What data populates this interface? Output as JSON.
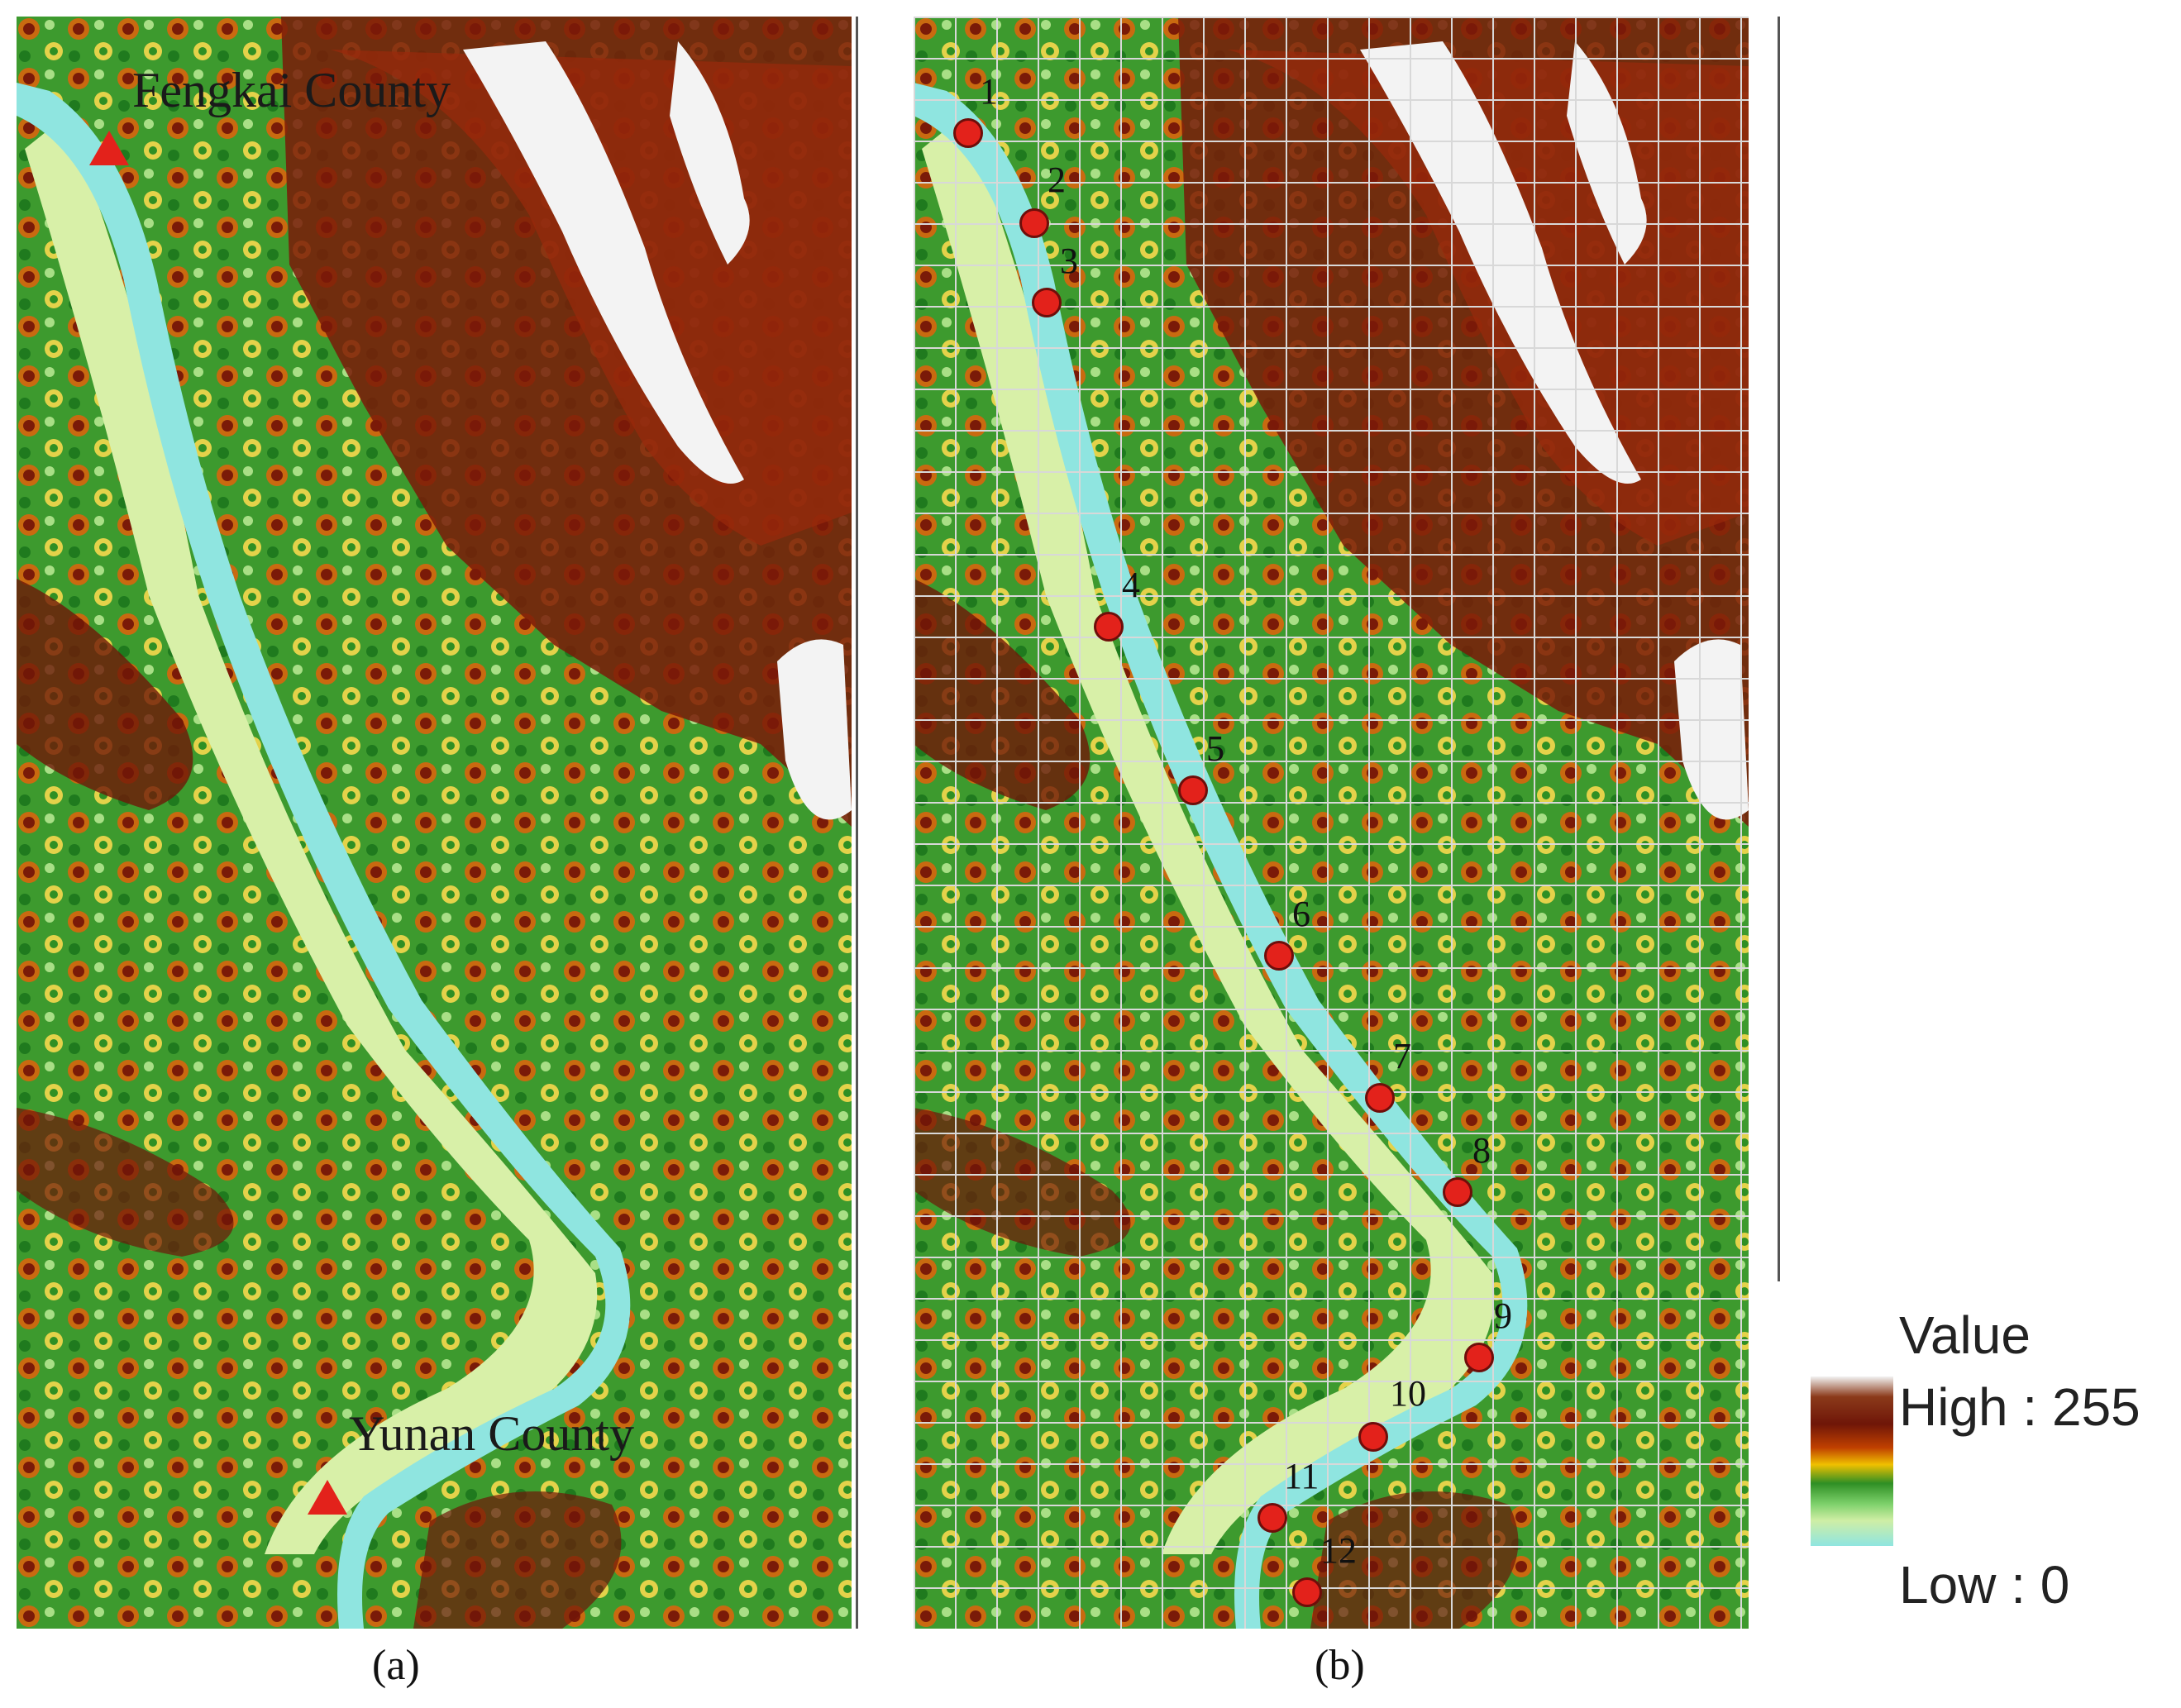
{
  "panel_a": {
    "caption": "(a)",
    "places": [
      {
        "name": "Fengkai County"
      },
      {
        "name": "Yunan County"
      }
    ]
  },
  "panel_b": {
    "caption": "(b)",
    "points": [
      "1",
      "2",
      "3",
      "4",
      "5",
      "6",
      "7",
      "8",
      "9",
      "10",
      "11",
      "12"
    ]
  },
  "legend": {
    "title": "Value",
    "high": "High : 255",
    "low": "Low : 0"
  },
  "colors": {
    "river": "#8fe5e0",
    "marker": "#e3221b",
    "high": "#6f1608",
    "mid": "#2f8f24",
    "peak": "#f5f5f5"
  }
}
